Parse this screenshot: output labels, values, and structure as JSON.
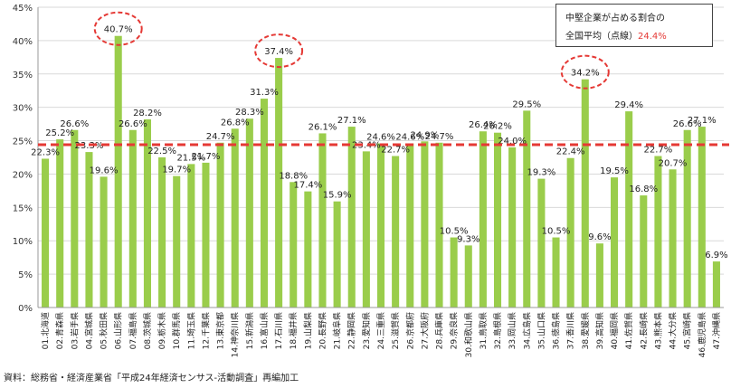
{
  "chart_data": {
    "type": "bar",
    "categories": [
      "01.北海道",
      "02.青森県",
      "03.岩手県",
      "04.宮城県",
      "05.秋田県",
      "06.山形県",
      "07.福島県",
      "08.茨城県",
      "09.栃木県",
      "10.群馬県",
      "11.埼玉県",
      "12.千葉県",
      "13.東京都",
      "14.神奈川県",
      "15.新潟県",
      "16.富山県",
      "17.石川県",
      "18.福井県",
      "19.山梨県",
      "20.長野県",
      "21.岐阜県",
      "22.静岡県",
      "23.愛知県",
      "24.三重県",
      "25.滋賀県",
      "26.京都府",
      "27.大阪府",
      "28.兵庫県",
      "29.奈良県",
      "30.和歌山県",
      "31.鳥取県",
      "32.島根県",
      "33.岡山県",
      "34.広島県",
      "35.山口県",
      "36.徳島県",
      "37.香川県",
      "38.愛媛県",
      "39.高知県",
      "40.福岡県",
      "41.佐賀県",
      "42.長崎県",
      "43.熊本県",
      "44.大分県",
      "45.宮崎県",
      "46.鹿児島県",
      "47.沖縄県"
    ],
    "values": [
      22.3,
      25.2,
      26.6,
      23.3,
      19.6,
      40.7,
      26.6,
      28.2,
      22.5,
      19.7,
      21.5,
      21.7,
      24.7,
      26.8,
      28.3,
      31.3,
      37.4,
      18.8,
      17.4,
      26.1,
      15.9,
      27.1,
      23.4,
      24.6,
      22.7,
      24.6,
      24.9,
      24.7,
      10.5,
      9.3,
      26.4,
      26.2,
      24.0,
      29.5,
      19.3,
      10.5,
      22.4,
      34.2,
      9.6,
      19.5,
      29.4,
      16.8,
      22.7,
      20.7,
      26.6,
      27.1,
      6.9
    ],
    "data_labels": [
      "22.3%",
      "25.2%",
      "26.6%",
      "23.3%",
      "19.6%",
      "40.7%",
      "26.6%",
      "28.2%",
      "22.5%",
      "19.7%",
      "21.5%",
      "21.7%",
      "24.7%",
      "26.8%",
      "28.3%",
      "31.3%",
      "37.4%",
      "18.8%",
      "17.4%",
      "26.1%",
      "15.9%",
      "27.1%",
      "23.4%",
      "24.6%",
      "22.7%",
      "24.6%",
      "24.9%",
      "24.7%",
      "10.5%",
      "9.3%",
      "26.4%",
      "26.2%",
      "24.0%",
      "29.5%",
      "19.3%",
      "10.5%",
      "22.4%",
      "34.2%",
      "9.6%",
      "19.5%",
      "29.4%",
      "16.8%",
      "22.7%",
      "20.7%",
      "26.6%",
      "27.1%",
      "6.9%"
    ],
    "ylim": [
      0,
      45
    ],
    "yticks": [
      "0%",
      "5%",
      "10%",
      "15%",
      "20%",
      "25%",
      "30%",
      "35%",
      "40%",
      "45%"
    ],
    "average": 24.4,
    "highlighted": [
      5,
      16,
      37
    ],
    "bar_color": "#9acd4b",
    "average_line_color": "#e53935",
    "grid": true
  },
  "legend": {
    "line1": "中堅企業が占める割合の",
    "line2_text": "全国平均（点線）",
    "line2_value": "24.4%"
  },
  "source": "資料：総務省・経済産業省「平成24年経済センサス-活動調査」再編加工"
}
